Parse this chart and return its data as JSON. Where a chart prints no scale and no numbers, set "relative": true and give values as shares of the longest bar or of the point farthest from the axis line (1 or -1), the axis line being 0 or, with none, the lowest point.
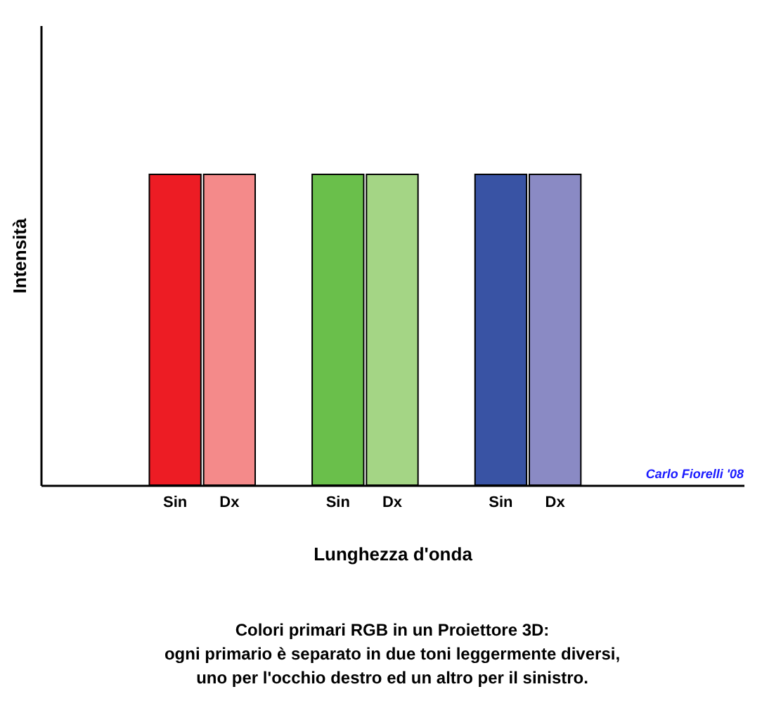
{
  "chart_data": {
    "type": "bar",
    "relative": true,
    "categories": [
      null,
      null,
      "Sin",
      "Dx",
      null,
      "Sin",
      "Dx",
      null,
      "Sin",
      "Dx",
      null,
      null,
      null
    ],
    "values": [
      null,
      null,
      1,
      1,
      null,
      1,
      1,
      null,
      1,
      1,
      null,
      null,
      null
    ],
    "colors": [
      "#ffffff",
      "#ffffff",
      "#ed1c24",
      "#f48a8a",
      "#ffffff",
      "#6abf4b",
      "#a4d585",
      "#ffffff",
      "#3953a4",
      "#8a8ac4",
      "#ffffff",
      "#ffffff",
      "#ffffff"
    ],
    "xlabel": "Lunghezza d'onda",
    "ylabel": "Intensità",
    "title": "Colori primari RGB in un Proiettore 3D:\nogni primario è separato in due toni leggermente diversi,\nuno per l'occhio destro ed un altro per il sinistro.",
    "annotations": [
      "Carlo Fiorelli '08"
    ],
    "grid": false
  }
}
